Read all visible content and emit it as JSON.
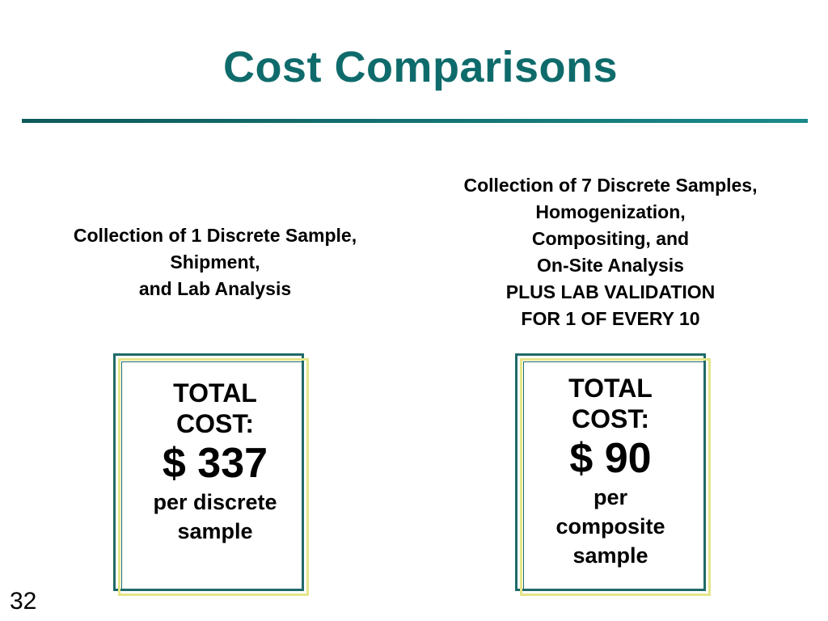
{
  "slide": {
    "title": "Cost Comparisons",
    "page_number": "32"
  },
  "left": {
    "description": [
      "Collection of 1 Discrete Sample,",
      "Shipment,",
      "and Lab Analysis"
    ],
    "box": {
      "label_line1": "TOTAL",
      "label_line2": "COST:",
      "amount": "$ 337",
      "sub_line1": "per discrete",
      "sub_line2": "sample"
    }
  },
  "right": {
    "description": [
      "Collection of 7 Discrete Samples,",
      "Homogenization,",
      "Compositing, and",
      "On-Site Analysis",
      "PLUS LAB VALIDATION",
      "FOR 1 OF EVERY 10"
    ],
    "box": {
      "label_line1": "TOTAL",
      "label_line2": "COST:",
      "amount": "$ 90",
      "sub_line1": "per",
      "sub_line2": "composite",
      "sub_line3": "sample"
    }
  },
  "colors": {
    "title": "#0f6b6b",
    "rule": "#1a7a7a",
    "frame_teal": "#1f6a6a",
    "frame_yellow": "#e5e58a"
  }
}
